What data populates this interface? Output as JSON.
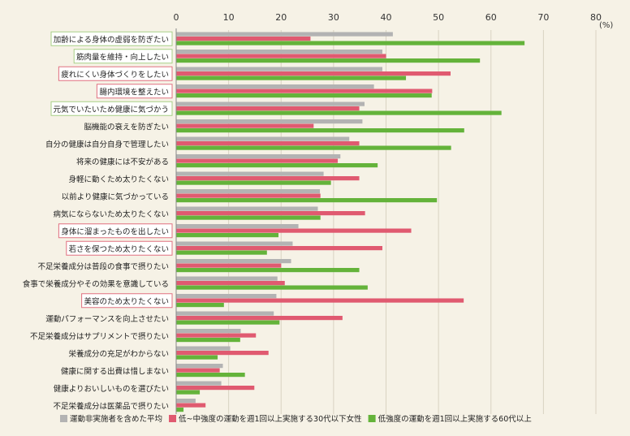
{
  "chart_data": {
    "type": "bar",
    "orientation": "horizontal",
    "unit": "(%)",
    "xlim": [
      0,
      80
    ],
    "xticks": [
      "0",
      "10",
      "20",
      "30",
      "40",
      "50",
      "60",
      "70",
      "80"
    ],
    "grid": true,
    "legend_position": "bottom",
    "categories": [
      "加齢による身体の虚弱を防ぎたい",
      "筋肉量を維持・向上したい",
      "疲れにくい身体づくりをしたい",
      "腸内環境を整えたい",
      "元気でいたいため健康に気づかう",
      "脳機能の衰えを防ぎたい",
      "自分の健康は自分自身で管理したい",
      "将来の健康には不安がある",
      "身軽に動くため太りたくない",
      "以前より健康に気づかっている",
      "病気にならないため太りたくない",
      "身体に溜まったものを出したい",
      "若さを保つため太りたくない",
      "不足栄養成分は普段の食事で摂りたい",
      "食事で栄養成分やその効果を意識している",
      "美容のため太りたくない",
      "運動パフォーマンスを向上させたい",
      "不足栄養成分はサプリメントで摂りたい",
      "栄養成分の充足がわからない",
      "健康に関する出費は惜しまない",
      "健康よりおいしいものを選びたい",
      "不足栄養成分は医薬品で摂りたい"
    ],
    "highlight": {
      "green": [
        0,
        1,
        4
      ],
      "red": [
        2,
        3,
        11,
        12,
        15
      ]
    },
    "series": [
      {
        "name": "運動非実施者を含めた平均",
        "color": "#b3b3b3",
        "values": [
          41.3,
          39.3,
          39.3,
          37.7,
          35.9,
          35.5,
          33.0,
          31.3,
          28.1,
          27.4,
          27.0,
          23.3,
          22.2,
          21.9,
          19.3,
          19.1,
          18.6,
          12.3,
          10.3,
          8.9,
          8.6,
          3.7
        ]
      },
      {
        "name": "低~中強度の運動を週1回以上実施する30代以下女性",
        "color": "#e05a70",
        "values": [
          25.6,
          40.0,
          52.3,
          48.8,
          34.9,
          26.2,
          34.9,
          30.8,
          34.9,
          27.5,
          36.0,
          44.8,
          39.3,
          20.0,
          20.7,
          54.8,
          31.7,
          15.2,
          17.6,
          8.3,
          14.9,
          5.6
        ]
      },
      {
        "name": "低強度の運動を週1回以上実施する60代以上",
        "color": "#64b33a",
        "values": [
          66.4,
          57.9,
          43.8,
          48.7,
          62.0,
          54.9,
          52.4,
          38.4,
          29.5,
          49.7,
          27.5,
          19.5,
          17.3,
          34.9,
          36.5,
          9.1,
          19.7,
          12.2,
          7.9,
          13.1,
          4.5,
          1.4
        ]
      }
    ]
  }
}
